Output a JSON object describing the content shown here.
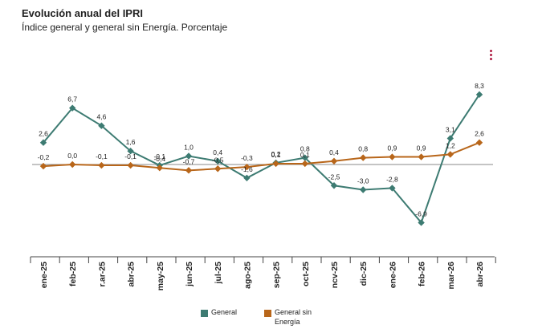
{
  "title": "Evolución anual del IPRI",
  "subtitle": "Índice general y general sin Energía. Porcentaje",
  "menu_icon": "vertical-dots-menu-icon",
  "colors": {
    "general": "#3d7b72",
    "sin_energia": "#b8661a",
    "menu": "#b01e44",
    "axis": "#444444",
    "zero": "#888888"
  },
  "chart_data": {
    "type": "line",
    "categories": [
      "ene-25",
      "feb-25",
      "mar-25",
      "abr-25",
      "may-25",
      "jun-25",
      "jul-25",
      "ago-25",
      "sep-25",
      "oct-25",
      "nov-25",
      "dic-25",
      "ene-26",
      "feb-26",
      "mar-26",
      "abr-26"
    ],
    "category_display": [
      "ene-25",
      "feb-25",
      "r.ar-25",
      "abr-25",
      "may-25",
      "jun-25",
      "jul-25",
      "ago-25",
      "sep-25",
      "oct-25",
      "ncv-25",
      "dic-25",
      "ene-26",
      "feb-26",
      "mar-26",
      "abr-26"
    ],
    "series": [
      {
        "name": "General",
        "values": [
          2.6,
          6.7,
          4.6,
          1.6,
          -0.1,
          1.0,
          0.4,
          -1.6,
          0.2,
          0.8,
          -2.5,
          -3.0,
          -2.8,
          -6.9,
          3.1,
          8.3
        ],
        "labels": [
          "2,6",
          "6,7",
          "4,6",
          "1,6",
          "-0,1",
          "1,0",
          "0,4",
          "-1,6",
          "0,2",
          "0,8",
          "-2,5",
          "-3,0",
          "-2,8",
          "-6,9",
          "3,1",
          "8,3"
        ]
      },
      {
        "name": "General sin Energía",
        "values": [
          -0.2,
          0.0,
          -0.1,
          -0.1,
          -0.4,
          -0.7,
          -0.5,
          -0.3,
          0.1,
          0.1,
          0.4,
          0.8,
          0.9,
          0.9,
          1.2,
          2.6
        ],
        "labels": [
          "-0,2",
          "0,0",
          "-0,1",
          "-0,1",
          "-0,4",
          "-0,7",
          "-0,5",
          "-0,3",
          "0,1",
          "0,1",
          "0,4",
          "0,8",
          "0,9",
          "0,9",
          "1,2",
          "2,6"
        ]
      }
    ],
    "ylim": [
      -9,
      11
    ],
    "grid": false,
    "legend_position": "bottom-center",
    "legend": [
      {
        "label": "General"
      },
      {
        "label_lines": [
          "General sin",
          "Energía"
        ]
      }
    ]
  }
}
